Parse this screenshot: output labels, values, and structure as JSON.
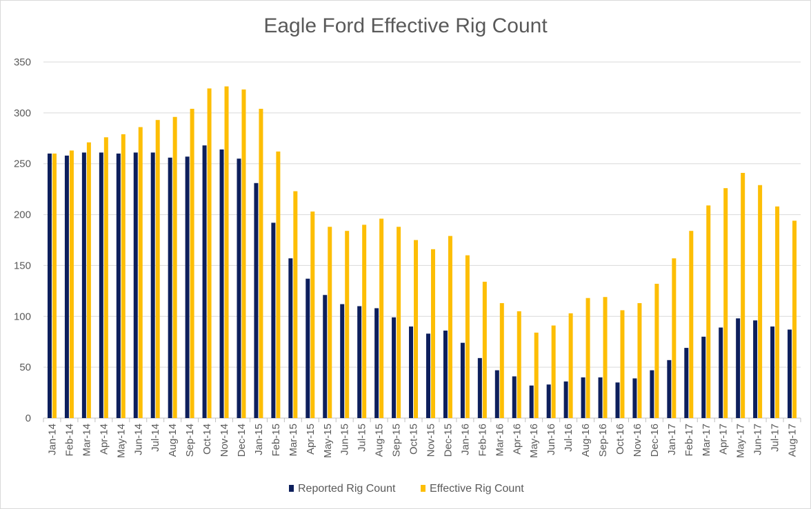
{
  "chart_data": {
    "type": "bar",
    "title": "Eagle Ford Effective Rig Count",
    "xlabel": "",
    "ylabel": "",
    "ylim": [
      0,
      350
    ],
    "yticks": [
      0,
      50,
      100,
      150,
      200,
      250,
      300,
      350
    ],
    "grid": true,
    "legend_position": "bottom",
    "categories": [
      "Jan-14",
      "Feb-14",
      "Mar-14",
      "Apr-14",
      "May-14",
      "Jun-14",
      "Jul-14",
      "Aug-14",
      "Sep-14",
      "Oct-14",
      "Nov-14",
      "Dec-14",
      "Jan-15",
      "Feb-15",
      "Mar-15",
      "Apr-15",
      "May-15",
      "Jun-15",
      "Jul-15",
      "Aug-15",
      "Sep-15",
      "Oct-15",
      "Nov-15",
      "Dec-15",
      "Jan-16",
      "Feb-16",
      "Mar-16",
      "Apr-16",
      "May-16",
      "Jun-16",
      "Jul-16",
      "Aug-16",
      "Sep-16",
      "Oct-16",
      "Nov-16",
      "Dec-16",
      "Jan-17",
      "Feb-17",
      "Mar-17",
      "Apr-17",
      "May-17",
      "Jun-17",
      "Jul-17",
      "Aug-17"
    ],
    "series": [
      {
        "name": "Reported Rig Count",
        "color": "#0d1f5c",
        "values": [
          260,
          258,
          261,
          261,
          260,
          261,
          261,
          256,
          257,
          268,
          264,
          255,
          231,
          192,
          157,
          137,
          121,
          112,
          110,
          108,
          99,
          90,
          83,
          86,
          74,
          59,
          47,
          41,
          32,
          33,
          36,
          40,
          40,
          35,
          39,
          47,
          57,
          69,
          80,
          89,
          98,
          96,
          90,
          87
        ]
      },
      {
        "name": "Effective Rig Count",
        "color": "#fdbe05",
        "values": [
          260,
          263,
          271,
          276,
          279,
          286,
          293,
          296,
          304,
          324,
          326,
          323,
          304,
          262,
          223,
          203,
          188,
          184,
          190,
          196,
          188,
          175,
          166,
          179,
          160,
          134,
          113,
          105,
          84,
          91,
          103,
          118,
          119,
          106,
          113,
          132,
          157,
          184,
          209,
          226,
          241,
          229,
          208,
          194
        ]
      }
    ]
  }
}
